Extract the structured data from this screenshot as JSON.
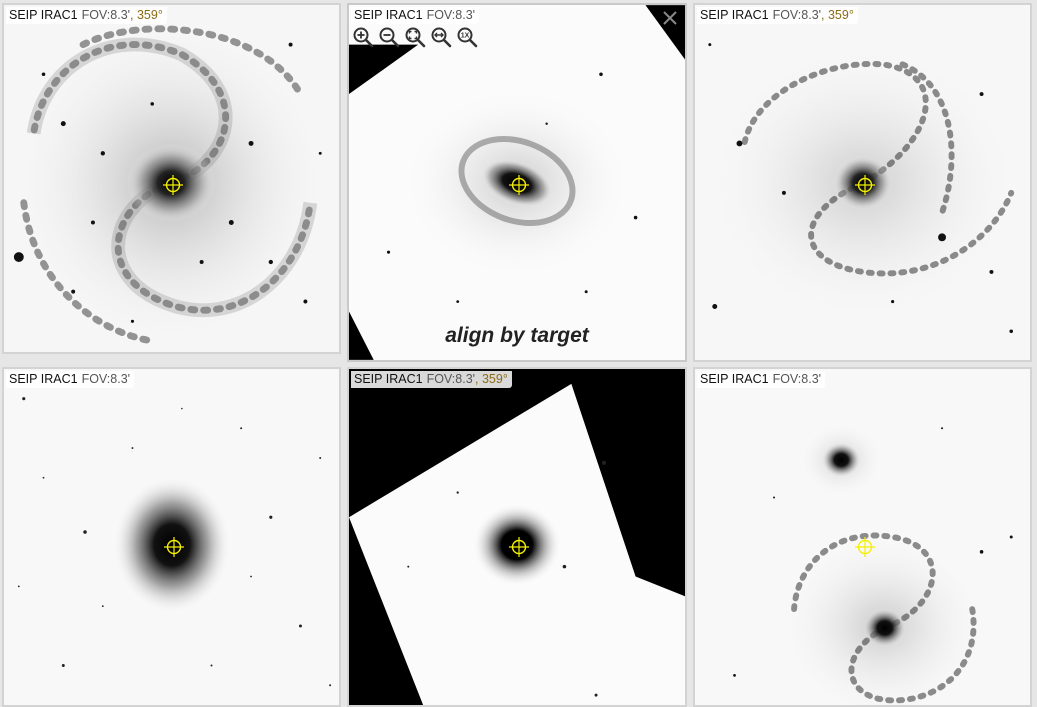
{
  "panels": [
    {
      "survey": "SEIP IRAC1",
      "fov": "FOV:8.3'",
      "rotation": ", 359°"
    },
    {
      "survey": "SEIP IRAC1",
      "fov": "FOV:8.3'",
      "rotation": ""
    },
    {
      "survey": "SEIP IRAC1",
      "fov": "FOV:8.3'",
      "rotation": ", 359°"
    },
    {
      "survey": "SEIP IRAC1",
      "fov": "FOV:8.3'",
      "rotation": ""
    },
    {
      "survey": "SEIP IRAC1",
      "fov": "FOV:8.3'",
      "rotation": ", 359°"
    },
    {
      "survey": "SEIP IRAC1",
      "fov": "FOV:8.3'",
      "rotation": ""
    }
  ],
  "toolbar": {
    "icons": [
      "zoom-in-icon",
      "zoom-out-icon",
      "zoom-fit-icon",
      "zoom-fill-icon",
      "zoom-1x-icon"
    ],
    "one_x_label": "1X"
  },
  "overlay": {
    "align_text": "align by target"
  },
  "colors": {
    "crosshair": "#f5f000",
    "rotation_text": "#8a6a14",
    "border": "#d3d3d3"
  }
}
